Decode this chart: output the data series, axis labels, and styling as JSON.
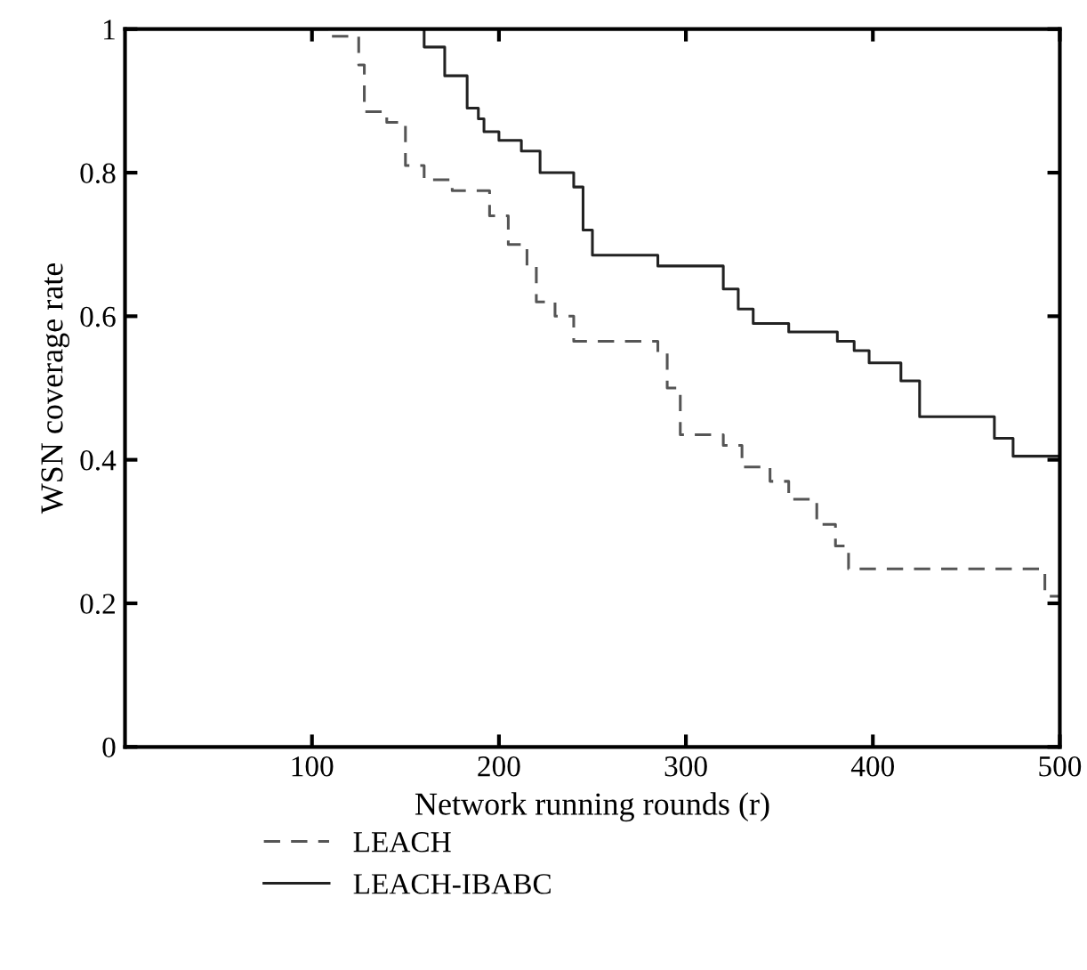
{
  "chart_data": {
    "type": "step",
    "xlabel": "Network running rounds (r)",
    "ylabel": "WSN coverage rate",
    "xlim": [
      0,
      500
    ],
    "ylim": [
      0,
      1
    ],
    "xticks": [
      100,
      200,
      300,
      400,
      500
    ],
    "yticks": [
      0,
      0.2,
      0.4,
      0.6,
      0.8,
      1
    ],
    "legend": "bottom",
    "grid": false,
    "series": [
      {
        "name": "LEACH",
        "color": "#555555",
        "line_style": "dashed",
        "x": [
          100,
          108,
          125,
          128,
          140,
          150,
          160,
          175,
          195,
          205,
          215,
          220,
          230,
          240,
          285,
          290,
          297,
          320,
          330,
          345,
          355,
          370,
          380,
          387,
          490,
          492,
          500
        ],
        "values": [
          1.0,
          0.99,
          0.95,
          0.885,
          0.87,
          0.81,
          0.79,
          0.775,
          0.74,
          0.7,
          0.67,
          0.62,
          0.6,
          0.565,
          0.55,
          0.5,
          0.435,
          0.42,
          0.39,
          0.37,
          0.345,
          0.31,
          0.28,
          0.248,
          0.248,
          0.21,
          0.21
        ]
      },
      {
        "name": "LEACH-IBABC",
        "color": "#222222",
        "line_style": "solid",
        "x": [
          159,
          160,
          171,
          183,
          189,
          192,
          200,
          212,
          222,
          240,
          245,
          250,
          259,
          285,
          320,
          328,
          336,
          355,
          381,
          390,
          398,
          415,
          425,
          462,
          465,
          475,
          500
        ],
        "values": [
          1.0,
          0.975,
          0.935,
          0.89,
          0.875,
          0.857,
          0.845,
          0.83,
          0.8,
          0.78,
          0.72,
          0.685,
          0.685,
          0.67,
          0.638,
          0.61,
          0.59,
          0.578,
          0.565,
          0.552,
          0.535,
          0.51,
          0.46,
          0.46,
          0.43,
          0.405,
          0.405
        ]
      }
    ]
  }
}
